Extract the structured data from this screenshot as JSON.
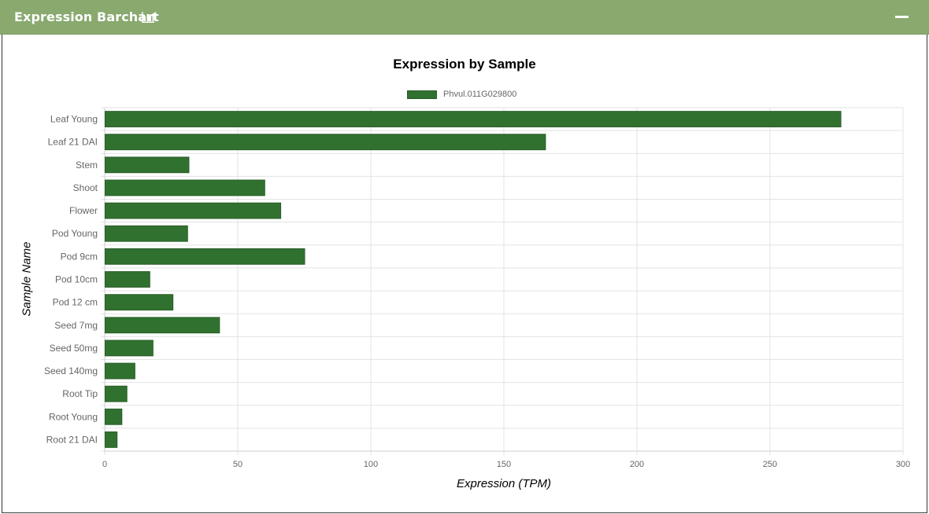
{
  "panel": {
    "title": "Expression Barchart",
    "title_icon": "bar-chart-icon",
    "collapse_icon": "minus-icon",
    "header_color": "#89a96f"
  },
  "chart_data": {
    "type": "bar",
    "orientation": "horizontal",
    "title": "Expression by Sample",
    "xlabel": "Expression (TPM)",
    "ylabel": "Sample Name",
    "xlim": [
      0,
      300
    ],
    "xticks": [
      0,
      50,
      100,
      150,
      200,
      250,
      300
    ],
    "grid": true,
    "legend_position": "top-center",
    "bar_color": "#31712f",
    "categories": [
      "Leaf Young",
      "Leaf 21 DAI",
      "Stem",
      "Shoot",
      "Flower",
      "Pod Young",
      "Pod 9cm",
      "Pod 10cm",
      "Pod 12 cm",
      "Seed 7mg",
      "Seed 50mg",
      "Seed 140mg",
      "Root Tip",
      "Root Young",
      "Root 21 DAI"
    ],
    "series": [
      {
        "name": "Phvul.011G029800",
        "values": [
          276.5,
          165.5,
          31.5,
          60,
          66,
          31,
          75,
          16.8,
          25.5,
          43,
          18,
          11.2,
          8.2,
          6.3,
          4.5
        ]
      }
    ]
  }
}
